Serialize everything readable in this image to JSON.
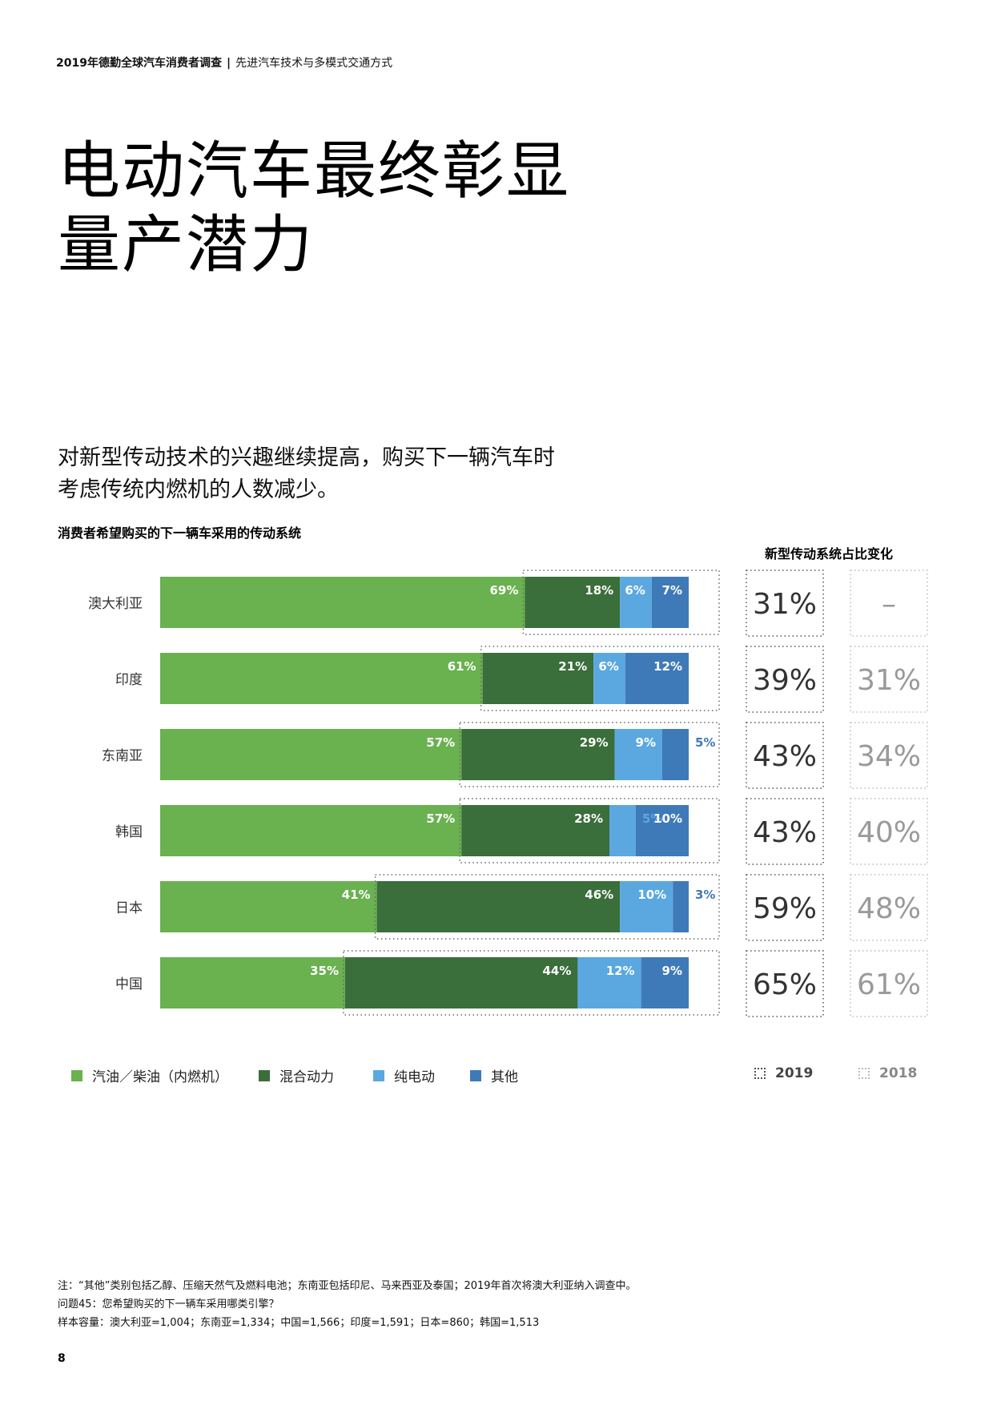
{
  "header": {
    "report": "2019年德勤全球汽车消费者调查",
    "separator": "|",
    "section": "先进汽车技术与多模式交通方式"
  },
  "title": {
    "line1": "电动汽车最终彰显",
    "line2": "量产潜力"
  },
  "intro": {
    "line1": "对新型传动技术的兴趣继续提高，购买下一辆汽车时",
    "line2": "考虑传统内燃机的人数减少。"
  },
  "chart_title": "消费者希望购买的下一辆车采用的传动系统",
  "change_title": "新型传动系统占比变化",
  "chart_data": {
    "type": "bar",
    "orientation": "horizontal",
    "stacked": true,
    "categories": [
      "澳大利亚",
      "印度",
      "东南亚",
      "韩国",
      "日本",
      "中国"
    ],
    "series": [
      {
        "name": "汽油／柴油（内燃机）",
        "values": [
          69,
          61,
          57,
          57,
          41,
          35
        ],
        "labels": [
          "69%",
          "61%",
          "57%",
          "57%",
          "41%",
          "35%"
        ],
        "color": "#6ab150"
      },
      {
        "name": "混合动力",
        "values": [
          18,
          21,
          29,
          28,
          46,
          44
        ],
        "labels": [
          "18%",
          "21%",
          "29%",
          "28%",
          "46%",
          "44%"
        ],
        "color": "#3a6e3b"
      },
      {
        "name": "纯电动",
        "values": [
          6,
          6,
          9,
          5,
          10,
          12
        ],
        "labels": [
          "6%",
          "6%",
          "9%",
          "5%",
          "10%",
          "12%"
        ],
        "color": "#5ba8e0"
      },
      {
        "name": "其他",
        "values": [
          7,
          12,
          5,
          10,
          3,
          9
        ],
        "labels": [
          "7%",
          "12%",
          "5%",
          "10%",
          "3%",
          "9%"
        ],
        "color": "#3f7ab8"
      }
    ],
    "xlim": [
      0,
      100
    ],
    "change": {
      "2019": [
        "31%",
        "39%",
        "43%",
        "43%",
        "59%",
        "65%"
      ],
      "2018": [
        "–",
        "31%",
        "34%",
        "40%",
        "48%",
        "61%"
      ]
    },
    "legend_position": "bottom"
  },
  "legend": {
    "items": [
      {
        "label": "汽油／柴油（内燃机）",
        "color": "#6ab150"
      },
      {
        "label": "混合动力",
        "color": "#3a6e3b"
      },
      {
        "label": "纯电动",
        "color": "#5ba8e0"
      },
      {
        "label": "其他",
        "color": "#3f7ab8"
      }
    ],
    "year_2019": "2019",
    "year_2018": "2018",
    "color_2019": "#555555",
    "color_2018": "#bbbbbb"
  },
  "notes": {
    "line1": "注：“其他”类别包括乙醇、压缩天然气及燃料电池；东南亚包括印尼、马来西亚及泰国；2019年首次将澳大利亚纳入调查中。",
    "line2": "问题45：您希望购买的下一辆车采用哪类引擎？",
    "line3": "样本容量：澳大利亚=1,004；东南亚=1,334；中国=1,566；印度=1,591；日本=860；韩国=1,513"
  },
  "page_number": "8"
}
